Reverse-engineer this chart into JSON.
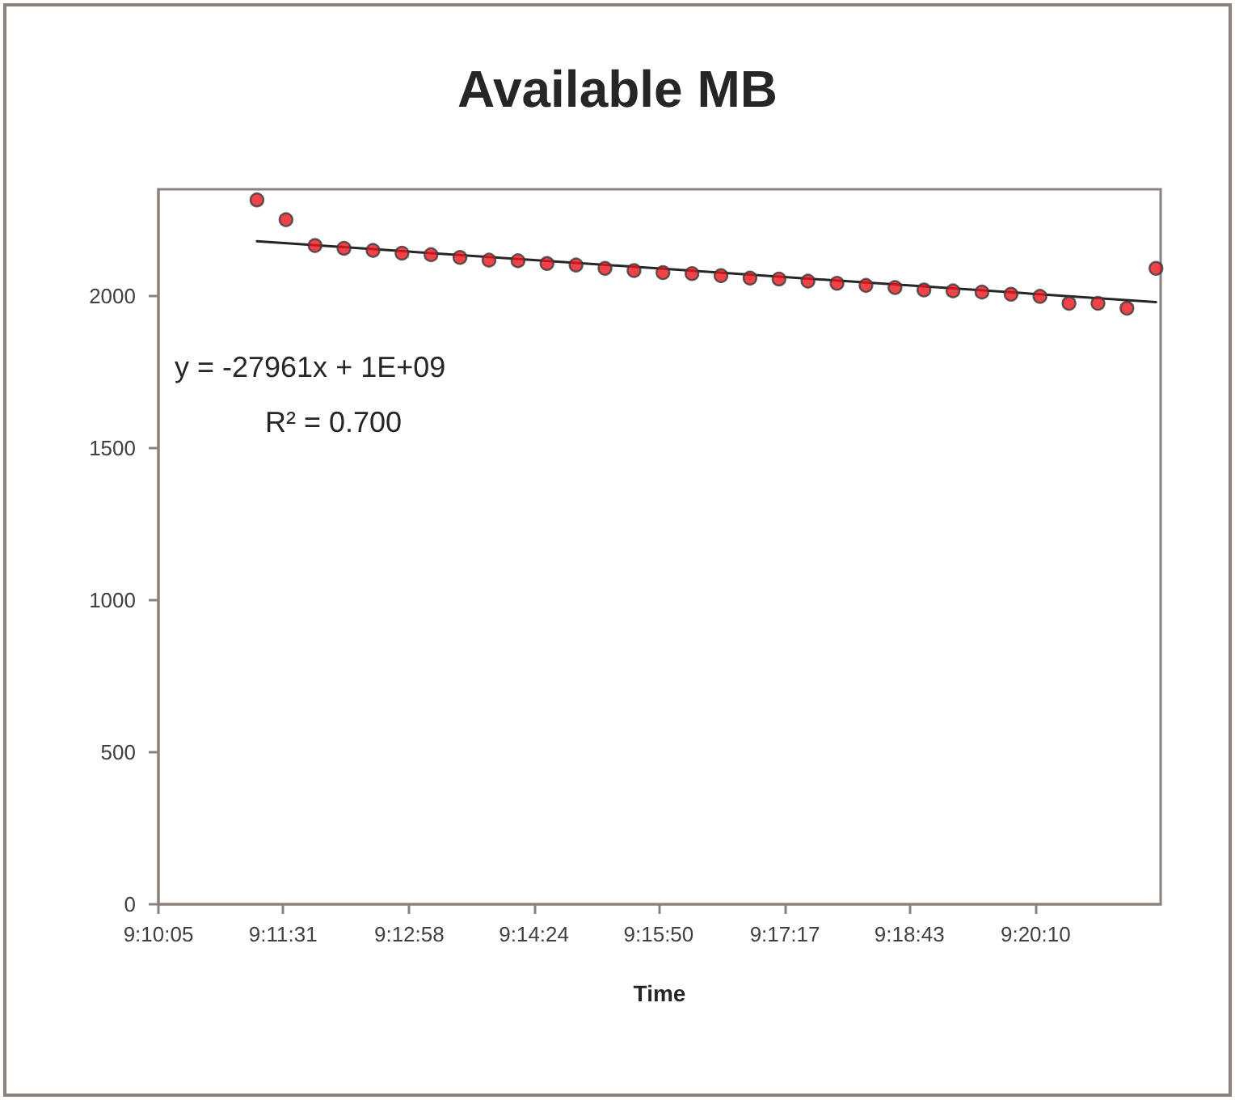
{
  "chart_data": {
    "type": "scatter",
    "title": "Available MB",
    "xlabel": "Time",
    "annotations": [
      "y = -27961x + 1E+09",
      "R² = 0.700"
    ],
    "x": [
      9.18694,
      9.1925,
      9.19806,
      9.20361,
      9.20917,
      9.21472,
      9.22028,
      9.22583,
      9.23139,
      9.23694,
      9.2425,
      9.24806,
      9.25361,
      9.25917,
      9.26472,
      9.27028,
      9.27583,
      9.28139,
      9.28694,
      9.2925,
      9.29806,
      9.30361,
      9.30917,
      9.31472,
      9.32028,
      9.32583,
      9.33139,
      9.33694,
      9.3425,
      9.34806,
      9.35361,
      9.35917
    ],
    "series": [
      {
        "color": "#e8141c",
        "values": [
          2315,
          2250,
          2165,
          2156,
          2149,
          2140,
          2135,
          2126,
          2117,
          2115,
          2106,
          2101,
          2090,
          2083,
          2076,
          2073,
          2066,
          2058,
          2055,
          2048,
          2041,
          2034,
          2027,
          2019,
          2016,
          2012,
          2005,
          1998,
          1975,
          1975,
          1959,
          2090
        ]
      },
      {
        "type": "line",
        "color": "#262626",
        "marker": "none",
        "line_style": "solid",
        "x": [
          9.18694,
          9.35917
        ],
        "values": [
          2179,
          1979
        ]
      }
    ],
    "xlim": [
      9.16806,
      9.36006
    ],
    "xticks": [
      {
        "value": 9.16806,
        "label": "9:10:05"
      },
      {
        "value": 9.19194,
        "label": "9:11:31"
      },
      {
        "value": 9.21611,
        "label": "9:12:58"
      },
      {
        "value": 9.24,
        "label": "9:14:24"
      },
      {
        "value": 9.26389,
        "label": "9:15:50"
      },
      {
        "value": 9.28806,
        "label": "9:17:17"
      },
      {
        "value": 9.31194,
        "label": "9:18:43"
      },
      {
        "value": 9.33611,
        "label": "9:20:10"
      }
    ],
    "ylim": [
      0,
      2350
    ],
    "yticks": [
      0,
      500,
      1000,
      1500,
      2000
    ],
    "grid": false,
    "marker": "circle"
  }
}
